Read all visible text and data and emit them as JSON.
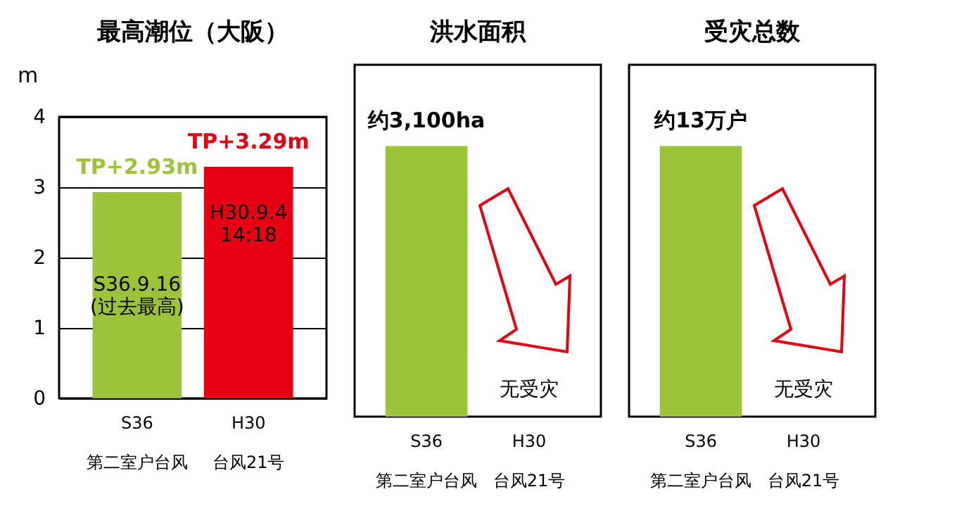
{
  "chart_data": [
    {
      "type": "bar",
      "title": "最高潮位（大阪）",
      "ylabel": "m",
      "categories": [
        "S36\n第二室户台风",
        "H30\n台风21号"
      ],
      "values": [
        2.93,
        3.29
      ],
      "colors": [
        "#9bc43b",
        "#e60012"
      ],
      "value_labels": [
        "TP+2.93m",
        "TP+3.29m"
      ],
      "ylim": [
        0,
        4
      ],
      "yticks": [
        0,
        1,
        2,
        3,
        4
      ],
      "grid": "y",
      "annotations": [
        "S36.9.16 (过去最高)",
        "H30.9.4 14:18"
      ]
    },
    {
      "type": "bar",
      "title": "洪水面积",
      "tick_labels": "x",
      "categories": [
        "S36\n第二室户台风",
        "H30\n台风21号"
      ],
      "values": [
        3100,
        null
      ],
      "color": "#9bc43b",
      "value_labels": [
        "约3,100ha",
        null
      ],
      "annotations": [
        "无受灾"
      ]
    },
    {
      "type": "bar",
      "title": "受灾总数",
      "tick_labels": "x",
      "categories": [
        "S36\n第二室户台风",
        "H30\n台风21号"
      ],
      "values": [
        13,
        null
      ],
      "color": "#9bc43b",
      "value_labels": [
        "约13万户",
        null
      ],
      "annotations": [
        "无受灾"
      ]
    }
  ]
}
